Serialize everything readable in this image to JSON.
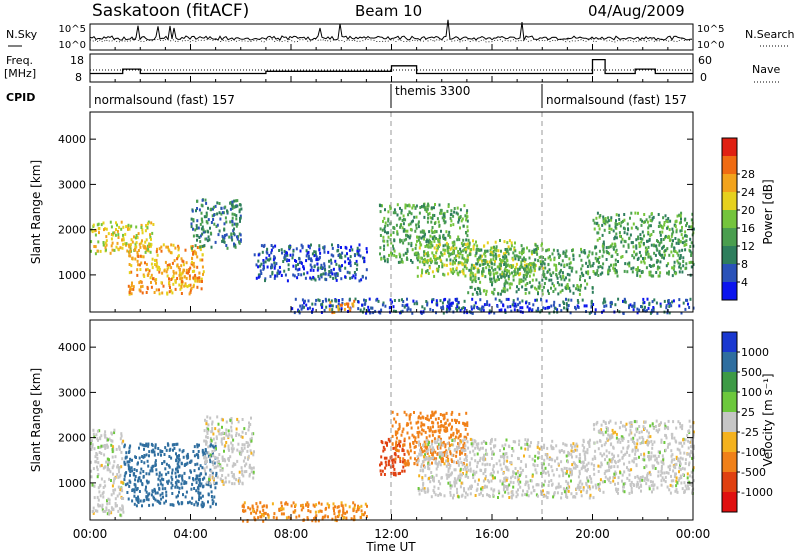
{
  "header": {
    "station": "Saskatoon (fitACF)",
    "beam": "Beam 10",
    "date": "04/Aug/2009"
  },
  "noise_panel": {
    "left_label": "N.Sky",
    "right_label": "N.Search",
    "left_ticks": [
      "10^5",
      "10^0"
    ],
    "right_ticks": [
      "10^5",
      "10^0"
    ]
  },
  "freq_panel": {
    "label_line1": "Freq.",
    "label_line2": "[MHz]",
    "left_ticks": [
      "18",
      "8"
    ],
    "right_ticks": [
      "60",
      "0"
    ],
    "right_label": "Nave"
  },
  "cpid": {
    "label": "CPID",
    "segments": [
      {
        "start": 0,
        "end": 12,
        "name": "normalsound (fast) 157"
      },
      {
        "start": 12,
        "end": 18,
        "name": "themis 3300"
      },
      {
        "start": 18,
        "end": 24,
        "name": "normalsound (fast) 157"
      }
    ]
  },
  "power_panel": {
    "ylabel": "Slant Range [km]",
    "yticks": [
      "1000",
      "2000",
      "3000",
      "4000"
    ],
    "colorbar_label": "Power [dB]",
    "colorbar_ticks": [
      "4",
      "8",
      "12",
      "16",
      "20",
      "24",
      "28"
    ],
    "colors": [
      "#0b14ee",
      "#2a52b8",
      "#2e7e5d",
      "#4a9e4f",
      "#74c43c",
      "#e6d11e",
      "#f2a31c",
      "#ef6b12",
      "#e02012"
    ]
  },
  "velocity_panel": {
    "ylabel": "Slant Range [km]",
    "yticks": [
      "1000",
      "2000",
      "3000",
      "4000"
    ],
    "colorbar_label": "Velocity [m s⁻¹]",
    "colorbar_ticks": [
      "1000",
      "500",
      "100",
      "25",
      "-25",
      "-100",
      "-500",
      "-1000"
    ],
    "colors": [
      "#1a38d0",
      "#2f6e9f",
      "#3d9a45",
      "#6cc83c",
      "#c6c6c6",
      "#f4b21e",
      "#f08018",
      "#e04010",
      "#e01010"
    ]
  },
  "x_axis": {
    "ticks": [
      "00:00",
      "04:00",
      "08:00",
      "12:00",
      "16:00",
      "20:00",
      "00:00"
    ],
    "label": "Time UT"
  },
  "chart_data": {
    "type": "heatmap",
    "title": "Saskatoon (fitACF)  Beam 10  04/Aug/2009",
    "xlabel": "Time UT",
    "ylabel": "Slant Range [km]",
    "x_unit": "hours UT",
    "xlim": [
      0,
      24
    ],
    "ylim": [
      180,
      4600
    ],
    "frequency_mhz": {
      "x": [
        0,
        1.3,
        1.3,
        2,
        2,
        7,
        7,
        12,
        12,
        13,
        13,
        20,
        20,
        20.5,
        20.5,
        21.7,
        21.7,
        22.5,
        22.5,
        24
      ],
      "y": [
        10.5,
        10.5,
        12.5,
        12.5,
        10.5,
        10.5,
        11.5,
        11.5,
        14,
        14,
        10.5,
        10.5,
        16.8,
        16.8,
        10.5,
        10.5,
        12.5,
        12.5,
        10.5,
        10.5
      ]
    },
    "power_db_regions": [
      {
        "t": [
          0,
          2.5
        ],
        "range": [
          1500,
          2200
        ],
        "value": 24
      },
      {
        "t": [
          1.5,
          4.5
        ],
        "range": [
          600,
          1700
        ],
        "value": 28
      },
      {
        "t": [
          4,
          6
        ],
        "range": [
          1600,
          2700
        ],
        "value": 12
      },
      {
        "t": [
          6.5,
          11
        ],
        "range": [
          900,
          1700
        ],
        "value": 8
      },
      {
        "t": [
          8,
          24
        ],
        "range": [
          180,
          500
        ],
        "value": 8
      },
      {
        "t": [
          9.5,
          10.5
        ],
        "range": [
          200,
          450
        ],
        "value": 28
      },
      {
        "t": [
          11.5,
          15
        ],
        "range": [
          1300,
          2600
        ],
        "value": 16
      },
      {
        "t": [
          13,
          18
        ],
        "range": [
          1000,
          1800
        ],
        "value": 20
      },
      {
        "t": [
          15,
          20
        ],
        "range": [
          600,
          1600
        ],
        "value": 16
      },
      {
        "t": [
          20,
          24
        ],
        "range": [
          1000,
          2400
        ],
        "value": 16
      }
    ],
    "velocity_ms_regions": [
      {
        "t": [
          0,
          1.3
        ],
        "range": [
          300,
          2200
        ],
        "value": 0
      },
      {
        "t": [
          1.3,
          5
        ],
        "range": [
          500,
          1900
        ],
        "value": 400
      },
      {
        "t": [
          4.5,
          6.5
        ],
        "range": [
          1000,
          2500
        ],
        "value": 0
      },
      {
        "t": [
          6,
          11
        ],
        "range": [
          180,
          600
        ],
        "value": -80
      },
      {
        "t": [
          11.5,
          12.5
        ],
        "range": [
          1200,
          2000
        ],
        "value": -400
      },
      {
        "t": [
          12,
          15
        ],
        "range": [
          1400,
          2600
        ],
        "value": -200
      },
      {
        "t": [
          13,
          20
        ],
        "range": [
          700,
          2000
        ],
        "value": 0
      },
      {
        "t": [
          20,
          24
        ],
        "range": [
          800,
          2400
        ],
        "value": 0
      }
    ]
  }
}
